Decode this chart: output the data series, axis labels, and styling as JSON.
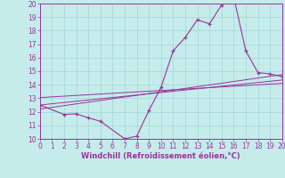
{
  "background_color": "#c5eceb",
  "grid_color": "#a8d8d8",
  "line_color": "#993399",
  "xlabel": "Windchill (Refroidissement éolien,°C)",
  "xlim": [
    0,
    20
  ],
  "ylim": [
    10,
    20
  ],
  "xticks": [
    0,
    1,
    2,
    3,
    4,
    5,
    6,
    7,
    8,
    9,
    10,
    11,
    12,
    13,
    14,
    15,
    16,
    17,
    18,
    19,
    20
  ],
  "yticks": [
    10,
    11,
    12,
    13,
    14,
    15,
    16,
    17,
    18,
    19,
    20
  ],
  "main_curve_x": [
    0,
    2,
    3,
    4,
    5,
    7,
    8,
    9,
    10,
    11,
    12,
    13,
    14,
    15,
    16,
    17,
    18,
    19,
    20
  ],
  "main_curve_y": [
    12.5,
    11.8,
    11.85,
    11.55,
    11.3,
    10.0,
    10.2,
    12.1,
    13.8,
    16.5,
    17.5,
    18.8,
    18.5,
    19.9,
    20.5,
    16.5,
    14.9,
    14.8,
    14.6
  ],
  "line1_x": [
    0,
    20
  ],
  "line1_y": [
    12.5,
    14.35
  ],
  "line2_x": [
    0,
    20
  ],
  "line2_y": [
    12.2,
    14.75
  ],
  "line3_x": [
    0,
    20
  ],
  "line3_y": [
    13.05,
    14.1
  ]
}
